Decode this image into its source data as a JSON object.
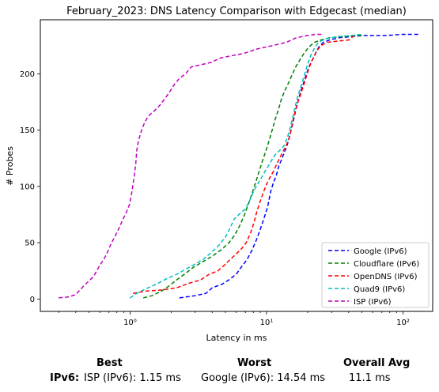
{
  "chart_data": {
    "type": "line",
    "title": "February_2023: DNS Latency Comparison with Edgecast (median)",
    "xlabel": "Latency in ms",
    "ylabel": "# Probes",
    "xscale": "log",
    "xlim": [
      0.22,
      165
    ],
    "ylim": [
      -11,
      248
    ],
    "x_ticks": [
      1,
      10,
      100
    ],
    "x_tick_labels": [
      "10⁰",
      "10¹",
      "10²"
    ],
    "y_ticks": [
      0,
      50,
      100,
      150,
      200
    ],
    "grid": false,
    "legend_position": "lower-right",
    "series": [
      {
        "name": "Google (IPv6)",
        "color": "#0000ff",
        "points": [
          [
            2.3,
            1
          ],
          [
            3.0,
            3
          ],
          [
            3.6,
            5
          ],
          [
            4.0,
            10
          ],
          [
            4.7,
            13
          ],
          [
            5.3,
            17
          ],
          [
            6.0,
            22
          ],
          [
            6.5,
            28
          ],
          [
            7.2,
            35
          ],
          [
            7.8,
            43
          ],
          [
            8.4,
            52
          ],
          [
            9.0,
            62
          ],
          [
            9.6,
            72
          ],
          [
            10.2,
            82
          ],
          [
            10.7,
            95
          ],
          [
            11.2,
            103
          ],
          [
            11.8,
            110
          ],
          [
            12.3,
            118
          ],
          [
            12.9,
            124
          ],
          [
            13.5,
            130
          ],
          [
            14.2,
            137
          ],
          [
            15.0,
            148
          ],
          [
            15.7,
            158
          ],
          [
            16.4,
            168
          ],
          [
            17.2,
            178
          ],
          [
            18.0,
            186
          ],
          [
            18.8,
            193
          ],
          [
            19.6,
            200
          ],
          [
            20.6,
            207
          ],
          [
            21.8,
            213
          ],
          [
            23.0,
            219
          ],
          [
            24.2,
            224
          ],
          [
            26.0,
            228
          ],
          [
            29.0,
            230
          ],
          [
            34.0,
            232
          ],
          [
            41.0,
            233
          ],
          [
            52.0,
            234
          ],
          [
            75.0,
            234
          ],
          [
            100.0,
            235
          ],
          [
            130.0,
            235
          ]
        ]
      },
      {
        "name": "Cloudflare (IPv6)",
        "color": "#008000",
        "points": [
          [
            1.25,
            1
          ],
          [
            1.45,
            3
          ],
          [
            1.7,
            7
          ],
          [
            1.95,
            12
          ],
          [
            2.2,
            17
          ],
          [
            2.5,
            22
          ],
          [
            2.9,
            28
          ],
          [
            3.4,
            33
          ],
          [
            4.0,
            38
          ],
          [
            4.7,
            44
          ],
          [
            5.3,
            50
          ],
          [
            5.8,
            56
          ],
          [
            6.3,
            64
          ],
          [
            6.8,
            73
          ],
          [
            7.3,
            83
          ],
          [
            7.8,
            93
          ],
          [
            8.3,
            103
          ],
          [
            8.8,
            113
          ],
          [
            9.3,
            122
          ],
          [
            9.8,
            130
          ],
          [
            10.4,
            140
          ],
          [
            11.0,
            150
          ],
          [
            11.6,
            160
          ],
          [
            12.2,
            168
          ],
          [
            12.8,
            177
          ],
          [
            13.5,
            184
          ],
          [
            14.5,
            192
          ],
          [
            15.5,
            200
          ],
          [
            16.5,
            207
          ],
          [
            17.7,
            213
          ],
          [
            19.0,
            219
          ],
          [
            20.5,
            224
          ],
          [
            22.5,
            228
          ],
          [
            25.0,
            230
          ],
          [
            29.0,
            232
          ],
          [
            36.0,
            233
          ],
          [
            45.0,
            234
          ],
          [
            52.0,
            234
          ]
        ]
      },
      {
        "name": "OpenDNS (IPv6)",
        "color": "#ff0000",
        "points": [
          [
            1.05,
            5
          ],
          [
            1.3,
            7
          ],
          [
            1.7,
            8
          ],
          [
            2.2,
            10
          ],
          [
            2.7,
            14
          ],
          [
            3.3,
            17
          ],
          [
            3.8,
            22
          ],
          [
            4.4,
            25
          ],
          [
            4.9,
            30
          ],
          [
            5.4,
            35
          ],
          [
            6.0,
            40
          ],
          [
            6.6,
            45
          ],
          [
            7.1,
            50
          ],
          [
            7.6,
            58
          ],
          [
            8.1,
            68
          ],
          [
            8.5,
            78
          ],
          [
            9.0,
            87
          ],
          [
            9.5,
            95
          ],
          [
            10.0,
            102
          ],
          [
            10.6,
            108
          ],
          [
            11.2,
            113
          ],
          [
            11.9,
            120
          ],
          [
            12.7,
            127
          ],
          [
            13.6,
            134
          ],
          [
            14.4,
            140
          ],
          [
            15.0,
            148
          ],
          [
            15.6,
            158
          ],
          [
            16.3,
            168
          ],
          [
            17.0,
            175
          ],
          [
            17.8,
            182
          ],
          [
            18.6,
            189
          ],
          [
            19.4,
            196
          ],
          [
            20.2,
            203
          ],
          [
            21.2,
            210
          ],
          [
            22.4,
            216
          ],
          [
            23.5,
            221
          ],
          [
            25.0,
            225
          ],
          [
            28.0,
            228
          ],
          [
            33.0,
            229
          ],
          [
            40.0,
            230
          ],
          [
            44.0,
            234
          ]
        ]
      },
      {
        "name": "Quad9 (IPv6)",
        "color": "#00bfbf",
        "points": [
          [
            1.0,
            1
          ],
          [
            1.12,
            5
          ],
          [
            1.3,
            9
          ],
          [
            1.55,
            13
          ],
          [
            1.85,
            18
          ],
          [
            2.2,
            22
          ],
          [
            2.6,
            27
          ],
          [
            3.0,
            31
          ],
          [
            3.5,
            36
          ],
          [
            4.0,
            42
          ],
          [
            4.5,
            48
          ],
          [
            5.0,
            55
          ],
          [
            5.4,
            63
          ],
          [
            5.8,
            71
          ],
          [
            6.4,
            76
          ],
          [
            7.0,
            80
          ],
          [
            7.5,
            87
          ],
          [
            8.0,
            95
          ],
          [
            8.5,
            101
          ],
          [
            9.0,
            106
          ],
          [
            9.6,
            112
          ],
          [
            10.3,
            118
          ],
          [
            11.0,
            124
          ],
          [
            11.7,
            129
          ],
          [
            12.5,
            132
          ],
          [
            13.4,
            136
          ],
          [
            14.2,
            143
          ],
          [
            14.9,
            152
          ],
          [
            15.6,
            162
          ],
          [
            16.3,
            172
          ],
          [
            17.0,
            181
          ],
          [
            17.8,
            188
          ],
          [
            18.6,
            196
          ],
          [
            19.4,
            203
          ],
          [
            20.2,
            210
          ],
          [
            21.2,
            217
          ],
          [
            22.5,
            223
          ],
          [
            24.0,
            228
          ],
          [
            27.0,
            231
          ],
          [
            33.0,
            233
          ],
          [
            42.0,
            234
          ],
          [
            50.0,
            235
          ]
        ]
      },
      {
        "name": "ISP (IPv6)",
        "color": "#bf00bf",
        "points": [
          [
            0.3,
            1
          ],
          [
            0.36,
            2
          ],
          [
            0.4,
            4
          ],
          [
            0.43,
            8
          ],
          [
            0.46,
            12
          ],
          [
            0.5,
            16
          ],
          [
            0.54,
            20
          ],
          [
            0.57,
            25
          ],
          [
            0.6,
            30
          ],
          [
            0.64,
            35
          ],
          [
            0.68,
            41
          ],
          [
            0.72,
            48
          ],
          [
            0.77,
            55
          ],
          [
            0.83,
            63
          ],
          [
            0.88,
            70
          ],
          [
            0.94,
            77
          ],
          [
            0.99,
            84
          ],
          [
            1.03,
            95
          ],
          [
            1.07,
            108
          ],
          [
            1.1,
            120
          ],
          [
            1.12,
            132
          ],
          [
            1.15,
            140
          ],
          [
            1.2,
            148
          ],
          [
            1.26,
            155
          ],
          [
            1.35,
            162
          ],
          [
            1.5,
            167
          ],
          [
            1.65,
            172
          ],
          [
            1.8,
            178
          ],
          [
            1.95,
            184
          ],
          [
            2.1,
            190
          ],
          [
            2.3,
            196
          ],
          [
            2.55,
            200
          ],
          [
            2.8,
            206
          ],
          [
            3.3,
            208
          ],
          [
            3.9,
            210
          ],
          [
            4.6,
            214
          ],
          [
            5.5,
            216
          ],
          [
            6.8,
            218
          ],
          [
            8.5,
            222
          ],
          [
            11.0,
            225
          ],
          [
            14.0,
            228
          ],
          [
            16.5,
            232
          ],
          [
            20.0,
            234
          ],
          [
            23.0,
            235
          ],
          [
            26.0,
            235
          ]
        ]
      }
    ]
  },
  "summary": {
    "col_best": "Best",
    "col_worst": "Worst",
    "col_avg": "Overall Avg",
    "row_label": "IPv6:",
    "best_value": "ISP (IPv6): 1.15 ms",
    "worst_value": "Google (IPv6): 14.54 ms",
    "avg_value": "11.1 ms"
  }
}
